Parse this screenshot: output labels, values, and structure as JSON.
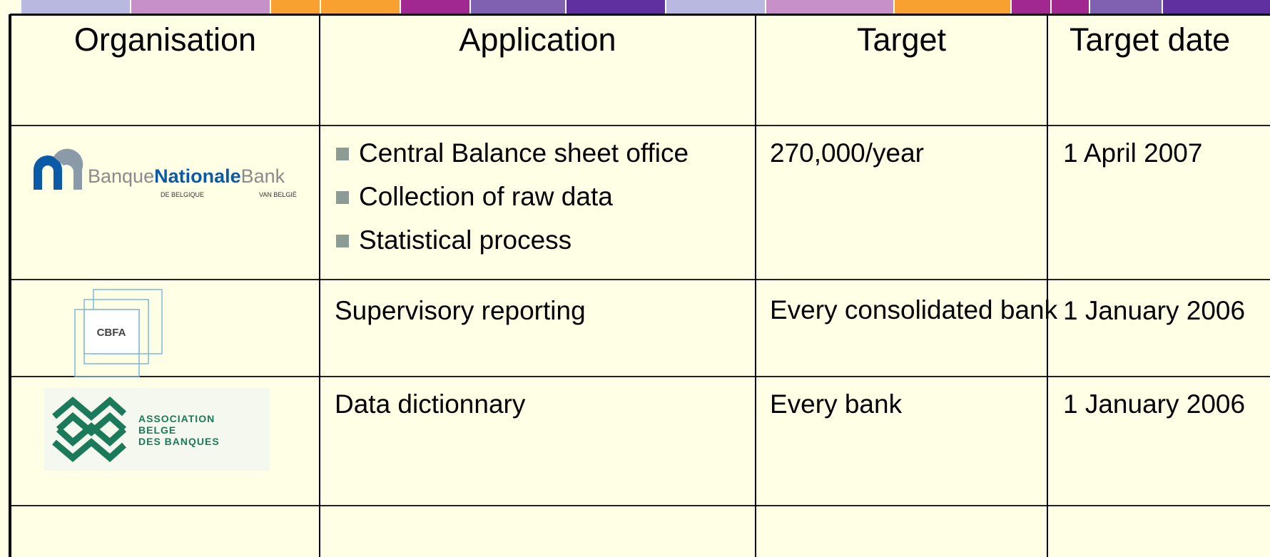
{
  "header": [
    "Organisation",
    "Application",
    "Target",
    "Target date"
  ],
  "rows": [
    {
      "logo": {
        "name": [
          "Banque",
          "Nationale",
          "Bank"
        ],
        "sub": [
          "DE BELGIQUE",
          "VAN BELGIË"
        ]
      },
      "application": [
        "Central Balance sheet office",
        "Collection of raw data",
        "Statistical process"
      ],
      "target": "270,000/year",
      "date": "1 April 2007"
    },
    {
      "logo": {
        "name": "CBFA"
      },
      "application": [
        "Supervisory reporting"
      ],
      "target": "Every consolidated bank",
      "date": "1 January 2006"
    },
    {
      "logo": {
        "name": [
          "ASSOCIATION",
          "BELGE",
          "DES BANQUES"
        ]
      },
      "application": [
        "Data dictionnary"
      ],
      "target": "Every bank",
      "date": "1 January 2006"
    }
  ]
}
